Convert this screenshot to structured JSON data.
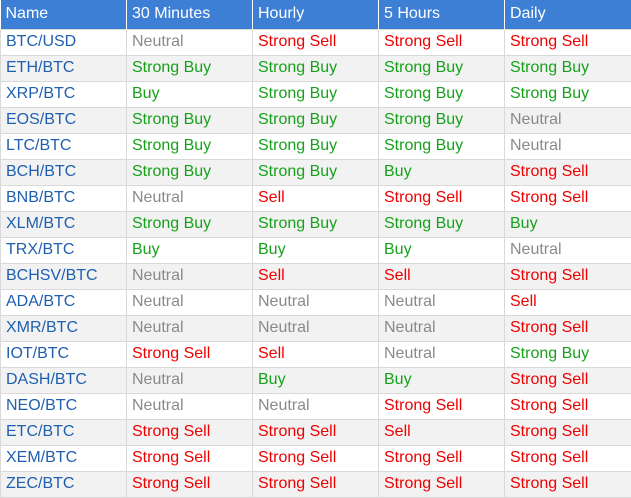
{
  "table": {
    "headers": [
      "Name",
      "30 Minutes",
      "Hourly",
      "5 Hours",
      "Daily"
    ],
    "rows": [
      {
        "pair": "BTC/USD",
        "signals": [
          "Neutral",
          "Strong Sell",
          "Strong Sell",
          "Strong Sell"
        ]
      },
      {
        "pair": "ETH/BTC",
        "signals": [
          "Strong Buy",
          "Strong Buy",
          "Strong Buy",
          "Strong Buy"
        ]
      },
      {
        "pair": "XRP/BTC",
        "signals": [
          "Buy",
          "Strong Buy",
          "Strong Buy",
          "Strong Buy"
        ]
      },
      {
        "pair": "EOS/BTC",
        "signals": [
          "Strong Buy",
          "Strong Buy",
          "Strong Buy",
          "Neutral"
        ]
      },
      {
        "pair": "LTC/BTC",
        "signals": [
          "Strong Buy",
          "Strong Buy",
          "Strong Buy",
          "Neutral"
        ]
      },
      {
        "pair": "BCH/BTC",
        "signals": [
          "Strong Buy",
          "Strong Buy",
          "Buy",
          "Strong Sell"
        ]
      },
      {
        "pair": "BNB/BTC",
        "signals": [
          "Neutral",
          "Sell",
          "Strong Sell",
          "Strong Sell"
        ]
      },
      {
        "pair": "XLM/BTC",
        "signals": [
          "Strong Buy",
          "Strong Buy",
          "Strong Buy",
          "Buy"
        ]
      },
      {
        "pair": "TRX/BTC",
        "signals": [
          "Buy",
          "Buy",
          "Buy",
          "Neutral"
        ]
      },
      {
        "pair": "BCHSV/BTC",
        "signals": [
          "Neutral",
          "Sell",
          "Sell",
          "Strong Sell"
        ]
      },
      {
        "pair": "ADA/BTC",
        "signals": [
          "Neutral",
          "Neutral",
          "Neutral",
          "Sell"
        ]
      },
      {
        "pair": "XMR/BTC",
        "signals": [
          "Neutral",
          "Neutral",
          "Neutral",
          "Strong Sell"
        ]
      },
      {
        "pair": "IOT/BTC",
        "signals": [
          "Strong Sell",
          "Sell",
          "Neutral",
          "Strong Buy"
        ]
      },
      {
        "pair": "DASH/BTC",
        "signals": [
          "Neutral",
          "Buy",
          "Buy",
          "Strong Sell"
        ]
      },
      {
        "pair": "NEO/BTC",
        "signals": [
          "Neutral",
          "Neutral",
          "Strong Sell",
          "Strong Sell"
        ]
      },
      {
        "pair": "ETC/BTC",
        "signals": [
          "Strong Sell",
          "Strong Sell",
          "Sell",
          "Strong Sell"
        ]
      },
      {
        "pair": "XEM/BTC",
        "signals": [
          "Strong Sell",
          "Strong Sell",
          "Strong Sell",
          "Strong Sell"
        ]
      },
      {
        "pair": "ZEC/BTC",
        "signals": [
          "Strong Sell",
          "Strong Sell",
          "Strong Sell",
          "Strong Sell"
        ]
      }
    ]
  },
  "colors": {
    "header_background": "#3d7fd5",
    "header_text": "#ffffff",
    "pair_text": "#1f5fb0",
    "buy": "#17a11b",
    "neutral": "#8a8a8a",
    "sell": "#ee0000",
    "row_alt": "#f2f2f2"
  }
}
